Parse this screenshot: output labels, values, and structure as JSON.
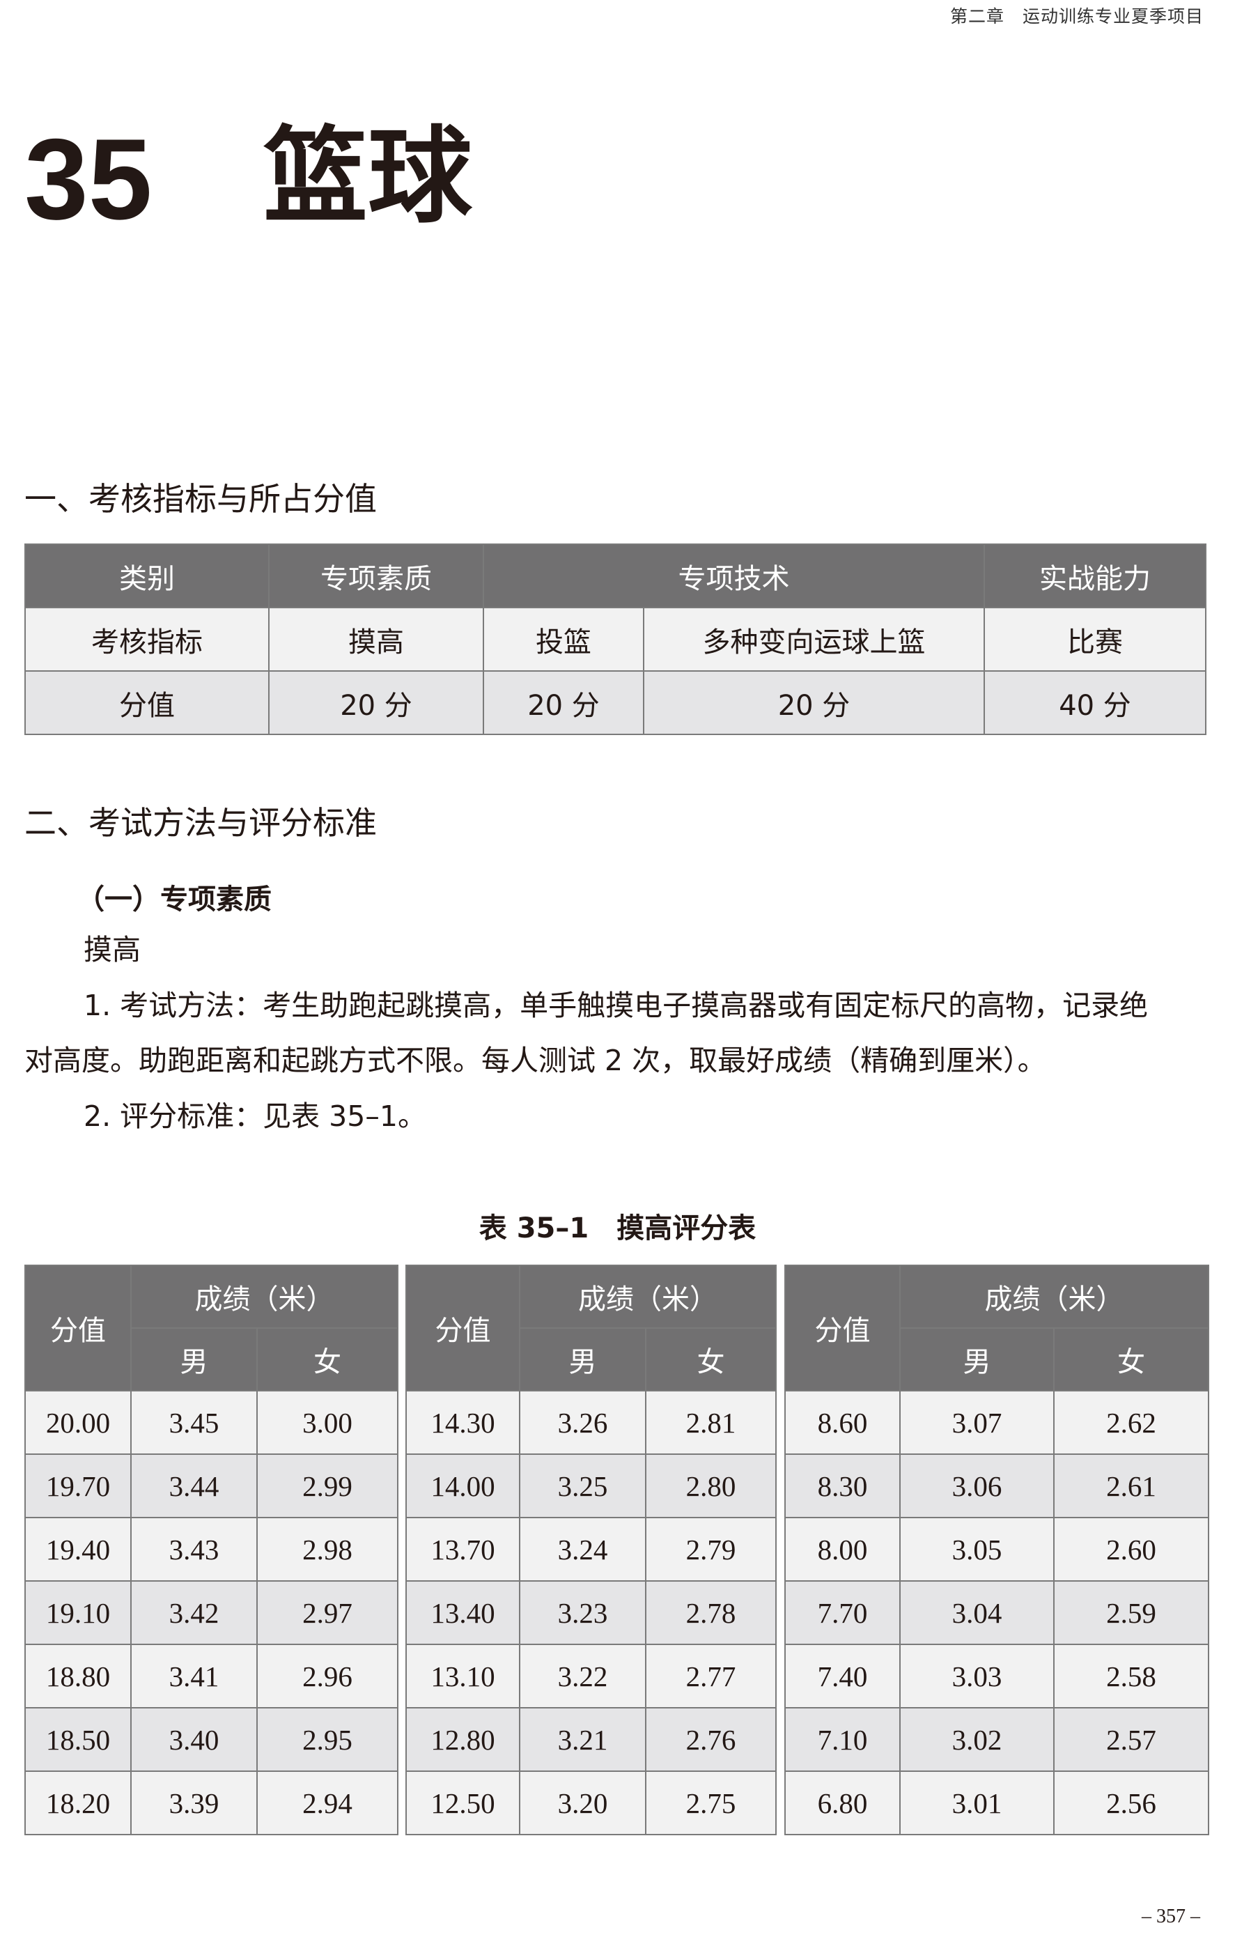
{
  "running_head": "第二章　运动训练专业夏季项目",
  "chapter": {
    "number": "35",
    "title": "篮球"
  },
  "section1": {
    "heading": "一、考核指标与所占分值",
    "table": {
      "header": [
        "类别",
        "专项素质",
        "专项技术",
        "实战能力"
      ],
      "row1": [
        "考核指标",
        "摸高",
        "投篮",
        "多种变向运球上篮",
        "比赛"
      ],
      "row2": [
        "分值",
        "20 分",
        "20 分",
        "20 分",
        "40 分"
      ]
    }
  },
  "section2": {
    "heading": "二、考试方法与评分标准",
    "sub": "（一）专项素质",
    "item": "摸高",
    "para1_line1": "1. 考试方法：考生助跑起跳摸高，单手触摸电子摸高器或有固定标尺的高物，记录绝",
    "para1_line2": "对高度。助跑距离和起跳方式不限。每人测试 2 次，取最好成绩（精确到厘米）。",
    "para2": "2. 评分标准：见表 35–1。"
  },
  "score_table": {
    "caption": "表 35–1　摸高评分表",
    "col_score": "分值",
    "col_result": "成绩（米）",
    "col_male": "男",
    "col_female": "女",
    "blocks": [
      {
        "rows": [
          [
            "20.00",
            "3.45",
            "3.00"
          ],
          [
            "19.70",
            "3.44",
            "2.99"
          ],
          [
            "19.40",
            "3.43",
            "2.98"
          ],
          [
            "19.10",
            "3.42",
            "2.97"
          ],
          [
            "18.80",
            "3.41",
            "2.96"
          ],
          [
            "18.50",
            "3.40",
            "2.95"
          ],
          [
            "18.20",
            "3.39",
            "2.94"
          ]
        ]
      },
      {
        "rows": [
          [
            "14.30",
            "3.26",
            "2.81"
          ],
          [
            "14.00",
            "3.25",
            "2.80"
          ],
          [
            "13.70",
            "3.24",
            "2.79"
          ],
          [
            "13.40",
            "3.23",
            "2.78"
          ],
          [
            "13.10",
            "3.22",
            "2.77"
          ],
          [
            "12.80",
            "3.21",
            "2.76"
          ],
          [
            "12.50",
            "3.20",
            "2.75"
          ]
        ]
      },
      {
        "rows": [
          [
            "8.60",
            "3.07",
            "2.62"
          ],
          [
            "8.30",
            "3.06",
            "2.61"
          ],
          [
            "8.00",
            "3.05",
            "2.60"
          ],
          [
            "7.70",
            "3.04",
            "2.59"
          ],
          [
            "7.40",
            "3.03",
            "2.58"
          ],
          [
            "7.10",
            "3.02",
            "2.57"
          ],
          [
            "6.80",
            "3.01",
            "2.56"
          ]
        ]
      }
    ]
  },
  "page_number": "– 357 –",
  "colors": {
    "header_bg": "#717071",
    "row_light": "#f2f2f2",
    "row_dark": "#e5e5e7"
  }
}
